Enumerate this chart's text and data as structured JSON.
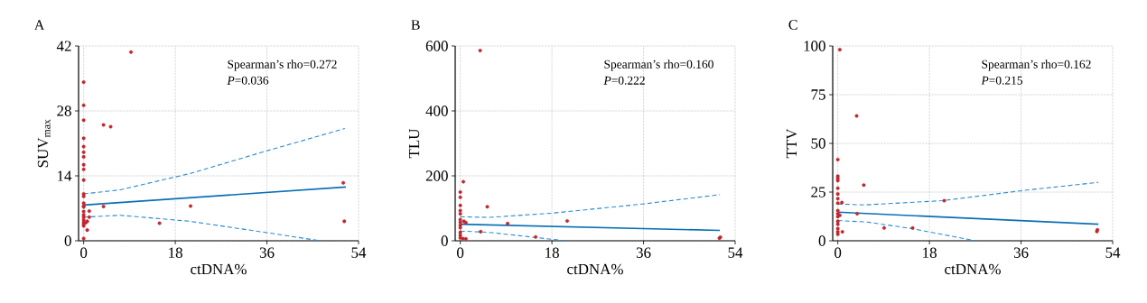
{
  "chart_data": [
    {
      "type": "scatter",
      "title": "A",
      "xlabel": "ctDNA%",
      "ylabel": "SUV$_{max}$",
      "xlim": [
        -1,
        54
      ],
      "ylim": [
        0,
        42
      ],
      "xticks": [
        0,
        18,
        36,
        54
      ],
      "yticks": [
        0,
        14,
        28,
        42
      ],
      "grid": true,
      "annotations": [
        "Spearman’s rho=0.272",
        "*P*=0.036"
      ],
      "series": [
        {
          "type": "scatter",
          "marker": "circle",
          "color": "#c1272d",
          "x": [
            0,
            0,
            0,
            0,
            0,
            0,
            0,
            0,
            0,
            0,
            0,
            0,
            0,
            0,
            0,
            0,
            0,
            0,
            0,
            0,
            0,
            0,
            0,
            1.1,
            1.1,
            0.7,
            0.7,
            0.4,
            3.9,
            3.9,
            5.3,
            9.3,
            14.9,
            21.0,
            51.0,
            51.2
          ],
          "values": [
            34.2,
            29.2,
            26,
            22.1,
            20.3,
            19.1,
            18.1,
            16.4,
            15.4,
            13.1,
            10.1,
            9.6,
            8.1,
            7.5,
            7.3,
            6.3,
            5.6,
            5.1,
            4.5,
            4.0,
            3.6,
            3.2,
            0.5,
            6.4,
            5.1,
            4.2,
            2.3,
            3.9,
            7.4,
            25.0,
            24.6,
            40.7,
            3.8,
            7.5,
            12.5,
            4.2
          ]
        },
        {
          "type": "line",
          "line_style": "solid",
          "color": "#0a6fb5",
          "x": [
            0,
            51.5
          ],
          "values": [
            7.7,
            11.6
          ]
        },
        {
          "type": "line",
          "line_style": "dashed",
          "color": "#2a8bd0",
          "x": [
            0,
            7.2,
            20.9,
            35.7,
            51.3
          ],
          "values": [
            10.1,
            11.0,
            14.5,
            19.3,
            24.2
          ]
        },
        {
          "type": "line",
          "line_style": "dashed",
          "color": "#2a8bd0",
          "x": [
            0,
            7.2,
            20.9,
            35.7,
            46.5
          ],
          "values": [
            5.1,
            5.5,
            4.2,
            1.8,
            0
          ]
        }
      ]
    },
    {
      "type": "scatter",
      "title": "B",
      "xlabel": "ctDNA%",
      "ylabel": "TLU",
      "xlim": [
        -1,
        54
      ],
      "ylim": [
        0,
        600
      ],
      "xticks": [
        0,
        18,
        36,
        54
      ],
      "yticks": [
        0,
        200,
        400,
        600
      ],
      "grid": true,
      "annotations": [
        "Spearman’s rho=0.160",
        "*P*=0.222"
      ],
      "series": [
        {
          "type": "scatter",
          "marker": "circle",
          "color": "#c1272d",
          "x": [
            3.9,
            0.6,
            0,
            0,
            0,
            0,
            0,
            0,
            0,
            0,
            0,
            0,
            0,
            0,
            1.1,
            0.7,
            5.3,
            9.3,
            4.0,
            1.1,
            0.5,
            14.8,
            21.0,
            50.9,
            51.1
          ],
          "values": [
            586,
            182,
            150,
            134,
            109,
            93,
            83,
            65,
            57,
            48,
            40,
            26,
            17,
            9,
            56,
            60,
            105,
            53,
            28,
            6,
            7,
            12,
            61,
            8,
            11
          ]
        },
        {
          "type": "line",
          "line_style": "solid",
          "color": "#0a6fb5",
          "x": [
            0,
            51
          ],
          "values": [
            51,
            32
          ]
        },
        {
          "type": "line",
          "line_style": "dashed",
          "color": "#2a8bd0",
          "x": [
            0,
            5.6,
            18,
            35.7,
            51
          ],
          "values": [
            74,
            72,
            85,
            113,
            142
          ]
        },
        {
          "type": "line",
          "line_style": "dashed",
          "color": "#2a8bd0",
          "x": [
            0,
            5.6,
            12.6,
            20.6
          ],
          "values": [
            30,
            26,
            14,
            0
          ]
        }
      ]
    },
    {
      "type": "scatter",
      "title": "C",
      "xlabel": "ctDNA%",
      "ylabel": "TTV",
      "xlim": [
        -1,
        54
      ],
      "ylim": [
        0,
        100
      ],
      "xticks": [
        0,
        18,
        36,
        54
      ],
      "yticks": [
        0,
        25,
        50,
        75,
        100
      ],
      "grid": true,
      "annotations": [
        "Spearman’s rho=0.162",
        "*P*=0.215"
      ],
      "series": [
        {
          "type": "scatter",
          "marker": "circle",
          "color": "#c1272d",
          "x": [
            0,
            0,
            0,
            0,
            0,
            0,
            0,
            0,
            0,
            0,
            0,
            0,
            0,
            0,
            0,
            0,
            0.4,
            0.8,
            0.4,
            0.9,
            3.7,
            5.1,
            3.8,
            9.1,
            14.7,
            20.9,
            50.9,
            51.0
          ],
          "values": [
            41.7,
            33.2,
            32.1,
            30.9,
            27.0,
            24.0,
            21.6,
            19.3,
            15.5,
            13.9,
            12.4,
            10,
            8.5,
            6.2,
            4.6,
            3.4,
            98.1,
            19.6,
            13.1,
            4.6,
            64.1,
            28.6,
            13.9,
            6.6,
            6.6,
            20.6,
            4.8,
            5.6
          ]
        },
        {
          "type": "line",
          "line_style": "solid",
          "color": "#0a6fb5",
          "x": [
            0,
            51.2
          ],
          "values": [
            14.7,
            8.5
          ]
        },
        {
          "type": "line",
          "line_style": "dashed",
          "color": "#2a8bd0",
          "x": [
            0,
            5.2,
            20.6,
            36,
            51.2
          ],
          "values": [
            18.9,
            18.4,
            20.6,
            25.7,
            30
          ]
        },
        {
          "type": "line",
          "line_style": "dashed",
          "color": "#2a8bd0",
          "x": [
            0,
            5.8,
            14.7,
            21.8,
            27.1
          ],
          "values": [
            10.4,
            9.6,
            6.2,
            2.6,
            0
          ]
        }
      ]
    }
  ]
}
